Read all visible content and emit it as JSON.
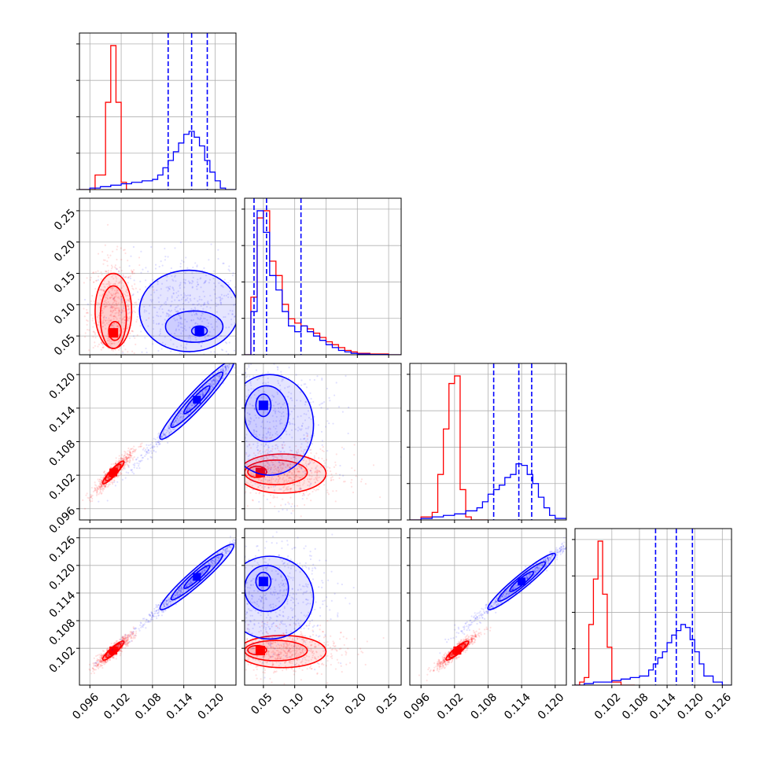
{
  "chart_data": {
    "type": "corner",
    "series": [
      {
        "name": "",
        "color": "#ff0000"
      },
      {
        "name": "",
        "color": "#0000ff"
      }
    ],
    "grid": true,
    "parameters": [
      {
        "range": [
          0.094,
          0.124
        ],
        "ticks": [
          0.096,
          0.102,
          0.108,
          0.114,
          0.12
        ],
        "tick_labels": [
          "0.096",
          "0.102",
          "0.108",
          "0.114",
          "0.120"
        ]
      },
      {
        "range": [
          0.02,
          0.27
        ],
        "ticks": [
          0.05,
          0.1,
          0.15,
          0.2,
          0.25
        ],
        "tick_labels": [
          "0.05",
          "0.10",
          "0.15",
          "0.20",
          "0.25"
        ]
      },
      {
        "range": [
          0.094,
          0.122
        ],
        "ticks": [
          0.096,
          0.102,
          0.108,
          0.114,
          0.12
        ],
        "tick_labels": [
          "0.096",
          "0.102",
          "0.108",
          "0.114",
          "0.120"
        ]
      },
      {
        "range": [
          0.094,
          0.128
        ],
        "ticks": [
          0.102,
          0.108,
          0.114,
          0.12,
          0.126
        ],
        "tick_labels": [
          "0.102",
          "0.108",
          "0.114",
          "0.120",
          "0.126"
        ]
      }
    ],
    "y_tick_labels_left": [
      [],
      [
        "0.05",
        "0.10",
        "0.15",
        "0.20",
        "0.25"
      ],
      [
        "0.096",
        "0.102",
        "0.108",
        "0.114",
        "0.120"
      ],
      [
        "0.102",
        "0.108",
        "0.114",
        "0.120",
        "0.126"
      ]
    ],
    "x_tick_labels_bottom": [
      [
        "0.096",
        "0.102",
        "0.108",
        "0.114",
        "0.120"
      ],
      [
        "0.05",
        "0.10",
        "0.15",
        "0.20",
        "0.25"
      ],
      [
        "0.096",
        "0.102",
        "0.108",
        "0.114",
        "0.120"
      ],
      [
        "0.102",
        "0.108",
        "0.114",
        "0.120",
        "0.126"
      ]
    ],
    "histograms": [
      {
        "parameter": 0,
        "quantile_lines": [
          0.111,
          0.1155,
          0.1185
        ],
        "red": {
          "edges": [
            0.094,
            0.095,
            0.096,
            0.097,
            0.098,
            0.099,
            0.1,
            0.101,
            0.102,
            0.103,
            0.104,
            0.105,
            0.106
          ],
          "counts": [
            0,
            0,
            0,
            0.1,
            0.1,
            0.6,
            0.99,
            0.6,
            0.05,
            0,
            0,
            0
          ]
        },
        "blue": {
          "edges": [
            0.094,
            0.096,
            0.098,
            0.1,
            0.102,
            0.104,
            0.106,
            0.108,
            0.109,
            0.11,
            0.111,
            0.112,
            0.113,
            0.114,
            0.115,
            0.116,
            0.117,
            0.118,
            0.119,
            0.12,
            0.121,
            0.122,
            0.124
          ],
          "counts": [
            0,
            0.01,
            0.02,
            0.03,
            0.04,
            0.05,
            0.06,
            0.07,
            0.1,
            0.15,
            0.2,
            0.26,
            0.32,
            0.38,
            0.4,
            0.36,
            0.3,
            0.2,
            0.12,
            0.06,
            0.01,
            0
          ]
        }
      },
      {
        "parameter": 1,
        "quantile_lines": [
          0.035,
          0.055,
          0.11
        ],
        "red": {
          "edges": [
            0.02,
            0.03,
            0.04,
            0.05,
            0.06,
            0.07,
            0.08,
            0.09,
            0.1,
            0.11,
            0.12,
            0.13,
            0.14,
            0.15,
            0.16,
            0.17,
            0.18,
            0.19,
            0.2,
            0.22,
            0.25,
            0.27
          ],
          "counts": [
            0,
            0.4,
            0.95,
            1.0,
            0.65,
            0.55,
            0.35,
            0.25,
            0.22,
            0.2,
            0.18,
            0.15,
            0.12,
            0.09,
            0.07,
            0.05,
            0.03,
            0.02,
            0.01,
            0.005,
            0
          ]
        },
        "blue": {
          "edges": [
            0.02,
            0.03,
            0.04,
            0.05,
            0.06,
            0.07,
            0.08,
            0.09,
            0.1,
            0.11,
            0.12,
            0.13,
            0.14,
            0.15,
            0.16,
            0.17,
            0.18,
            0.19,
            0.2,
            0.22,
            0.25,
            0.27
          ],
          "counts": [
            0,
            0.3,
            1.0,
            0.85,
            0.55,
            0.45,
            0.3,
            0.2,
            0.16,
            0.2,
            0.16,
            0.13,
            0.1,
            0.07,
            0.05,
            0.03,
            0.02,
            0.01,
            0.005,
            0.002,
            0
          ]
        }
      },
      {
        "parameter": 2,
        "quantile_lines": [
          0.109,
          0.1135,
          0.1158
        ],
        "red": {
          "edges": [
            0.094,
            0.095,
            0.096,
            0.097,
            0.098,
            0.099,
            0.1,
            0.101,
            0.102,
            0.103,
            0.104,
            0.105,
            0.106,
            0.107,
            0.108
          ],
          "counts": [
            0,
            0,
            0.02,
            0.02,
            0.05,
            0.3,
            0.6,
            0.9,
            0.95,
            0.2,
            0.02,
            0,
            0,
            0
          ]
        },
        "blue": {
          "edges": [
            0.094,
            0.096,
            0.098,
            0.1,
            0.102,
            0.104,
            0.106,
            0.107,
            0.108,
            0.109,
            0.11,
            0.111,
            0.112,
            0.113,
            0.114,
            0.115,
            0.116,
            0.117,
            0.118,
            0.119,
            0.12,
            0.122
          ],
          "counts": [
            0,
            0.01,
            0.02,
            0.03,
            0.04,
            0.06,
            0.08,
            0.12,
            0.17,
            0.2,
            0.23,
            0.28,
            0.3,
            0.37,
            0.36,
            0.3,
            0.24,
            0.15,
            0.08,
            0.03,
            0.01
          ]
        }
      },
      {
        "parameter": 3,
        "quantile_lines": [
          0.1115,
          0.116,
          0.1195
        ],
        "red": {
          "edges": [
            0.094,
            0.095,
            0.096,
            0.097,
            0.098,
            0.099,
            0.1,
            0.101,
            0.102,
            0.103,
            0.104,
            0.105,
            0.106,
            0.107
          ],
          "counts": [
            0,
            0.02,
            0.05,
            0.4,
            0.7,
            0.95,
            0.6,
            0.25,
            0.02,
            0.02,
            0,
            0,
            0
          ]
        },
        "blue": {
          "edges": [
            0.094,
            0.096,
            0.098,
            0.1,
            0.102,
            0.104,
            0.106,
            0.108,
            0.11,
            0.111,
            0.112,
            0.113,
            0.114,
            0.115,
            0.116,
            0.117,
            0.118,
            0.119,
            0.12,
            0.121,
            0.122,
            0.124,
            0.126,
            0.128
          ],
          "counts": [
            0,
            0.01,
            0.02,
            0.02,
            0.03,
            0.04,
            0.05,
            0.06,
            0.1,
            0.14,
            0.18,
            0.22,
            0.28,
            0.33,
            0.36,
            0.4,
            0.38,
            0.3,
            0.22,
            0.14,
            0.06,
            0.02,
            0
          ]
        }
      }
    ],
    "scatter_panels": [
      {
        "x": 0,
        "y": 1,
        "red": {
          "center": [
            0.1005,
            0.055
          ],
          "contours": [
            [
              0.1005,
              0.09,
              0.0035,
              0.06
            ],
            [
              0.1005,
              0.08,
              0.0025,
              0.05
            ],
            [
              0.1008,
              0.058,
              0.0012,
              0.015
            ]
          ]
        },
        "blue": {
          "center": [
            0.117,
            0.058
          ],
          "contours": [
            [
              0.115,
              0.09,
              0.0095,
              0.065
            ],
            [
              0.116,
              0.065,
              0.0055,
              0.025
            ],
            [
              0.117,
              0.058,
              0.0015,
              0.008
            ]
          ]
        }
      },
      {
        "x": 0,
        "y": 2,
        "red": {
          "center": [
            0.1005,
            0.1025
          ],
          "angle": "diagonal",
          "half_length": 0.002
        },
        "blue": {
          "center": [
            0.1165,
            0.1155
          ],
          "angle": "diagonal",
          "half_length": 0.007
        }
      },
      {
        "x": 1,
        "y": 2,
        "red": {
          "center": [
            0.045,
            0.1025
          ],
          "contours": [
            [
              0.08,
              0.1023,
              0.07,
              0.0035
            ],
            [
              0.07,
              0.1025,
              0.05,
              0.0022
            ],
            [
              0.04,
              0.1026,
              0.015,
              0.001
            ]
          ]
        },
        "blue": {
          "center": [
            0.05,
            0.1145
          ],
          "contours": [
            [
              0.06,
              0.111,
              0.07,
              0.009
            ],
            [
              0.055,
              0.113,
              0.035,
              0.005
            ],
            [
              0.05,
              0.1145,
              0.012,
              0.002
            ]
          ]
        }
      },
      {
        "x": 0,
        "y": 3,
        "red": {
          "center": [
            0.1005,
            0.1015
          ],
          "angle": "diagonal",
          "half_length": 0.002
        },
        "blue": {
          "center": [
            0.1165,
            0.1175
          ],
          "angle": "diagonal",
          "half_length": 0.007
        }
      },
      {
        "x": 1,
        "y": 3,
        "red": {
          "center": [
            0.045,
            0.1015
          ],
          "contours": [
            [
              0.08,
              0.1013,
              0.07,
              0.0035
            ],
            [
              0.07,
              0.1015,
              0.05,
              0.0022
            ],
            [
              0.04,
              0.1016,
              0.015,
              0.001
            ]
          ]
        },
        "blue": {
          "center": [
            0.05,
            0.1165
          ],
          "contours": [
            [
              0.06,
              0.113,
              0.07,
              0.009
            ],
            [
              0.055,
              0.115,
              0.035,
              0.005
            ],
            [
              0.05,
              0.1165,
              0.012,
              0.002
            ]
          ]
        }
      },
      {
        "x": 2,
        "y": 3,
        "red": {
          "center": [
            0.1025,
            0.1015
          ],
          "angle": "diagonal",
          "half_length": 0.002
        },
        "blue": {
          "center": [
            0.114,
            0.1165
          ],
          "angle": "diagonal",
          "half_length": 0.006
        }
      }
    ]
  }
}
